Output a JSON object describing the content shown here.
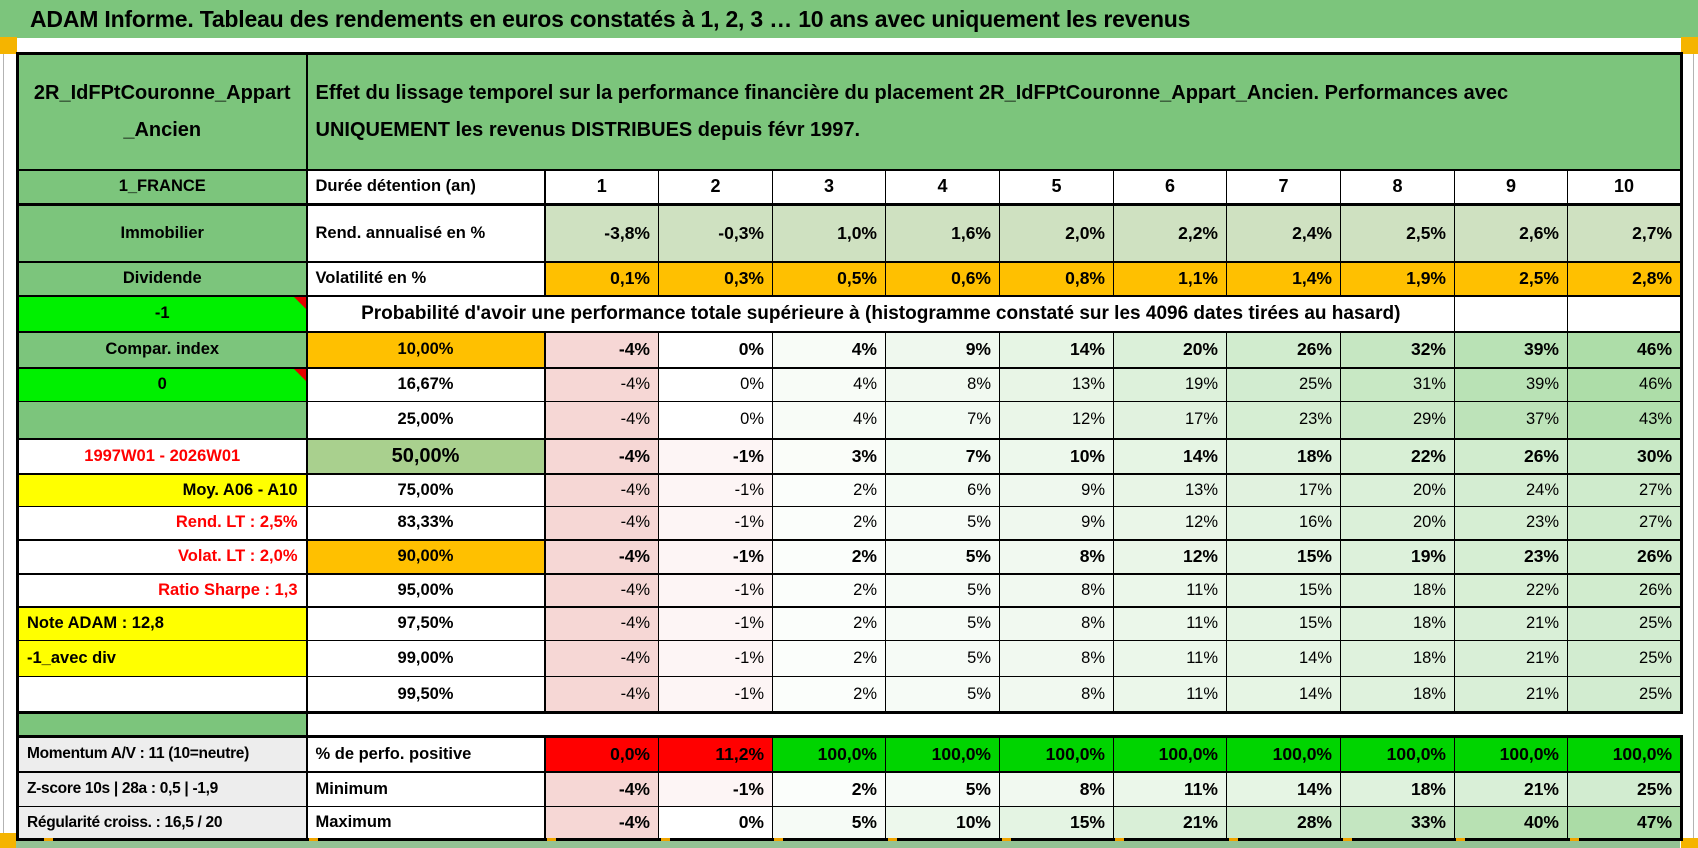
{
  "page_title": "ADAM Informe. Tableau des rendements en euros constatés à 1, 2, 3 … 10 ans avec uniquement les revenus",
  "palette": {
    "header_green": "#7cc57c",
    "bright_green": "#00f000",
    "vivid_green": "#00d400",
    "alert_red": "#ff0000",
    "orange": "#ffc000",
    "yellow": "#ffff00",
    "sage_green": "#cfe1c1",
    "green_50pct": "#a9d08e",
    "gray_label": "#ededed",
    "heat_pink": "#f6d7d5",
    "heat_green": "#abdca6"
  },
  "table": {
    "corner_title_lines": [
      "2R_IdFPtCouronne_Appart",
      "_Ancien"
    ],
    "main_header_lines": [
      "Effet du lissage temporel sur la performance financière du placement 2R_IdFPtCouronne_Appart_Ancien. Performances avec",
      "UNIQUEMENT les revenus DISTRIBUES depuis févr 1997."
    ],
    "rows": [
      {
        "id": "main-header",
        "kind": "header"
      },
      {
        "id": "duree",
        "kind": "data",
        "label": "1_FRANCE",
        "label_bg": "green",
        "label_align": "center",
        "b": "Durée détention (an)",
        "b_align": "left",
        "cells": [
          "1",
          "2",
          "3",
          "4",
          "5",
          "6",
          "7",
          "8",
          "9",
          "10"
        ],
        "cells_mode": "plain",
        "cells_bold": true,
        "cells_align": "center"
      },
      {
        "id": "rend",
        "kind": "data",
        "label": "Immobilier",
        "label_bg": "green",
        "label_align": "center",
        "b": "Rend. annualisé en %",
        "b_align": "left",
        "cells": [
          "-3,8%",
          "-0,3%",
          "1,0%",
          "1,6%",
          "2,0%",
          "2,2%",
          "2,4%",
          "2,5%",
          "2,6%",
          "2,7%"
        ],
        "cells_mode": "sage",
        "cells_bold": true,
        "cells_align": "right"
      },
      {
        "id": "volat",
        "kind": "data",
        "label": "Dividende",
        "label_bg": "green",
        "label_align": "center",
        "b": "Volatilité en %",
        "b_align": "left",
        "cells": [
          "0,1%",
          "0,3%",
          "0,5%",
          "0,6%",
          "0,8%",
          "1,1%",
          "1,4%",
          "1,9%",
          "2,5%",
          "2,8%"
        ],
        "cells_mode": "orange",
        "cells_bold": true,
        "cells_align": "right"
      },
      {
        "id": "proba",
        "kind": "merged",
        "label": "-1",
        "label_bg": "bright",
        "label_align": "center",
        "label_note": true,
        "text": "Probabilité d'avoir une performance totale supérieure à (histogramme constaté sur les 4096 dates tirées au hasard)",
        "empty_tail": 2
      },
      {
        "id": "p10",
        "kind": "data",
        "label": "Compar. index",
        "label_bg": "green",
        "label_align": "center",
        "b": "10,00%",
        "b_bg": "orange",
        "b_align": "center",
        "cells": [
          "-4%",
          "0%",
          "4%",
          "9%",
          "14%",
          "20%",
          "26%",
          "32%",
          "39%",
          "46%"
        ],
        "cells_mode": "heat",
        "cells_bold": true,
        "cells_align": "right"
      },
      {
        "id": "p1667",
        "kind": "data",
        "label": "0",
        "label_bg": "bright",
        "label_align": "center",
        "label_note": true,
        "b": "16,67%",
        "b_align": "center",
        "cells": [
          "-4%",
          "0%",
          "4%",
          "8%",
          "13%",
          "19%",
          "25%",
          "31%",
          "39%",
          "46%"
        ],
        "cells_mode": "heat",
        "cells_bold": false,
        "cells_align": "right"
      },
      {
        "id": "p25",
        "kind": "data",
        "label": "",
        "label_bg": "green",
        "label_align": "center",
        "b": "25,00%",
        "b_align": "center",
        "cells": [
          "-4%",
          "0%",
          "4%",
          "7%",
          "12%",
          "17%",
          "23%",
          "29%",
          "37%",
          "43%"
        ],
        "cells_mode": "heat",
        "cells_bold": false,
        "cells_align": "right"
      },
      {
        "id": "p50",
        "kind": "data",
        "label": "1997W01 - 2026W01",
        "label_bg": "white",
        "label_align": "center",
        "label_red": true,
        "b": "50,00%",
        "b_bg": "green50",
        "b_align": "center",
        "b_size": "lg",
        "cells": [
          "-4%",
          "-1%",
          "3%",
          "7%",
          "10%",
          "14%",
          "18%",
          "22%",
          "26%",
          "30%"
        ],
        "cells_mode": "heat",
        "cells_bold": true,
        "cells_align": "right"
      },
      {
        "id": "p75",
        "kind": "data",
        "label": "Moy. A06 - A10",
        "label_bg": "yellow",
        "label_align": "right",
        "b": "75,00%",
        "b_align": "center",
        "cells": [
          "-4%",
          "-1%",
          "2%",
          "6%",
          "9%",
          "13%",
          "17%",
          "20%",
          "24%",
          "27%"
        ],
        "cells_mode": "heat",
        "cells_bold": false,
        "cells_align": "right"
      },
      {
        "id": "p8333",
        "kind": "data",
        "label": "Rend. LT :   2,5%",
        "label_bg": "white",
        "label_align": "right",
        "label_red": true,
        "b": "83,33%",
        "b_align": "center",
        "cells": [
          "-4%",
          "-1%",
          "2%",
          "5%",
          "9%",
          "12%",
          "16%",
          "20%",
          "23%",
          "27%"
        ],
        "cells_mode": "heat",
        "cells_bold": false,
        "cells_align": "right"
      },
      {
        "id": "p90",
        "kind": "data",
        "label": "Volat. LT :   2,0%",
        "label_bg": "white",
        "label_align": "right",
        "label_red": true,
        "b": "90,00%",
        "b_bg": "orange",
        "b_align": "center",
        "cells": [
          "-4%",
          "-1%",
          "2%",
          "5%",
          "8%",
          "12%",
          "15%",
          "19%",
          "23%",
          "26%"
        ],
        "cells_mode": "heat",
        "cells_bold": true,
        "cells_align": "right"
      },
      {
        "id": "p95",
        "kind": "data",
        "label": "Ratio Sharpe :   1,3",
        "label_bg": "white",
        "label_align": "right",
        "label_red": true,
        "b": "95,00%",
        "b_align": "center",
        "cells": [
          "-4%",
          "-1%",
          "2%",
          "5%",
          "8%",
          "11%",
          "15%",
          "18%",
          "22%",
          "26%"
        ],
        "cells_mode": "heat",
        "cells_bold": false,
        "cells_align": "right"
      },
      {
        "id": "p975",
        "kind": "data",
        "label": "Note ADAM : 12,8",
        "label_bg": "yellow",
        "label_align": "left",
        "b": "97,50%",
        "b_align": "center",
        "cells": [
          "-4%",
          "-1%",
          "2%",
          "5%",
          "8%",
          "11%",
          "15%",
          "18%",
          "21%",
          "25%"
        ],
        "cells_mode": "heat",
        "cells_bold": false,
        "cells_align": "right"
      },
      {
        "id": "p99",
        "kind": "data",
        "label": "-1_avec div",
        "label_bg": "yellow",
        "label_align": "left",
        "b": "99,00%",
        "b_align": "center",
        "cells": [
          "-4%",
          "-1%",
          "2%",
          "5%",
          "8%",
          "11%",
          "14%",
          "18%",
          "21%",
          "25%"
        ],
        "cells_mode": "heat",
        "cells_bold": false,
        "cells_align": "right"
      },
      {
        "id": "p995",
        "kind": "data",
        "label": "",
        "label_bg": "white",
        "label_align": "center",
        "b": "99,50%",
        "b_align": "center",
        "cells": [
          "-4%",
          "-1%",
          "2%",
          "5%",
          "8%",
          "11%",
          "14%",
          "18%",
          "21%",
          "25%"
        ],
        "cells_mode": "heat",
        "cells_bold": false,
        "cells_align": "right"
      },
      {
        "id": "spacer",
        "kind": "spacer"
      },
      {
        "id": "posit",
        "kind": "data",
        "label": "Momentum A/V : 11 (10=neutre)",
        "label_bg": "gray",
        "label_align": "left",
        "label_small": true,
        "b": "% de perfo. positive",
        "b_align": "left",
        "cells": [
          "0,0%",
          "11,2%",
          "100,0%",
          "100,0%",
          "100,0%",
          "100,0%",
          "100,0%",
          "100,0%",
          "100,0%",
          "100,0%"
        ],
        "cells_mode": "flag",
        "cells_bold": true,
        "cells_align": "right"
      },
      {
        "id": "min",
        "kind": "data",
        "label": "Z-score 10s | 28a : 0,5 | -1,9",
        "label_bg": "gray",
        "label_align": "left",
        "label_small": true,
        "b": "Minimum",
        "b_align": "left",
        "cells": [
          "-4%",
          "-1%",
          "2%",
          "5%",
          "8%",
          "11%",
          "14%",
          "18%",
          "21%",
          "25%"
        ],
        "cells_mode": "heat",
        "cells_bold": true,
        "cells_align": "right"
      },
      {
        "id": "max",
        "kind": "data",
        "label": "Régularité croiss. : 16,5 / 20",
        "label_bg": "gray",
        "label_align": "left",
        "label_small": true,
        "b": "Maximum",
        "b_align": "left",
        "cells": [
          "-4%",
          "0%",
          "5%",
          "10%",
          "15%",
          "21%",
          "28%",
          "33%",
          "40%",
          "47%"
        ],
        "cells_mode": "heat",
        "cells_bold": true,
        "cells_align": "right"
      }
    ]
  }
}
